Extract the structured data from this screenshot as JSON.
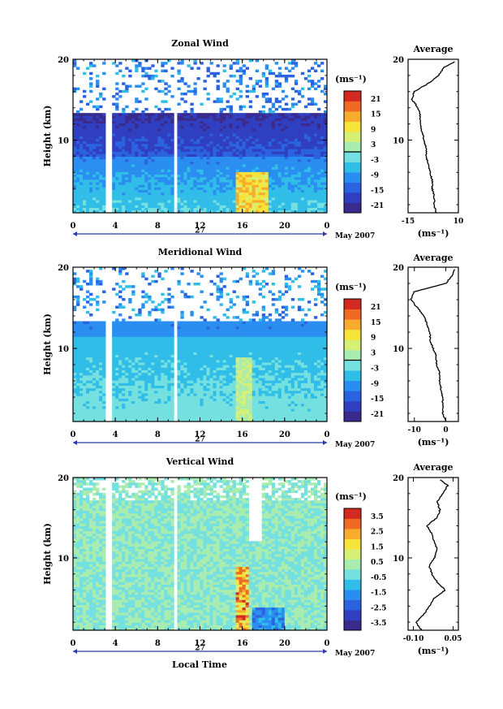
{
  "figure": {
    "xaxis_title": "Local Time",
    "date_label": "27",
    "month_label": "May 2007"
  },
  "chart_data": [
    {
      "type": "heatmap",
      "title": "Zonal Wind",
      "ylabel": "Height (km)",
      "xlabel": "Local Time",
      "x_ticks": [
        "0",
        "4",
        "8",
        "12",
        "16",
        "20",
        "0"
      ],
      "y_ticks": [
        "10",
        "20"
      ],
      "ylim": [
        1,
        20
      ],
      "xlim": [
        0,
        24
      ],
      "colorbar": {
        "unit": "(ms⁻¹)",
        "ticks": [
          "21",
          "15",
          "9",
          "3",
          "-3",
          "-9",
          "-15",
          "-21"
        ],
        "range": [
          -24,
          24
        ]
      },
      "dominant_pattern": "westerly/negative (-3 to -21 ms⁻¹) from 8 to 13 km, weak negative below, gap above ~14 km, positive patch near 16-18 LT below 5 km",
      "profile": {
        "title": "Average",
        "xlabel": "(ms⁻¹)",
        "x_ticks": [
          "-15",
          "10"
        ],
        "y_ticks": [
          "10",
          "20"
        ],
        "xlim": [
          -15,
          10
        ],
        "heights": [
          1,
          2,
          3,
          4,
          5,
          6,
          7,
          8,
          9,
          10,
          11,
          12,
          13,
          14,
          15,
          16,
          17,
          18,
          19,
          19.8
        ],
        "values": [
          -1,
          -2,
          -2,
          -3,
          -3,
          -4,
          -5,
          -6,
          -6,
          -7,
          -8,
          -9,
          -9,
          -10,
          -13,
          -12,
          -5,
          0,
          3,
          9
        ]
      }
    },
    {
      "type": "heatmap",
      "title": "Meridional Wind",
      "ylabel": "Height (km)",
      "xlabel": "Local Time",
      "x_ticks": [
        "0",
        "4",
        "8",
        "12",
        "16",
        "20",
        "0"
      ],
      "y_ticks": [
        "10",
        "20"
      ],
      "ylim": [
        1,
        20
      ],
      "xlim": [
        0,
        24
      ],
      "colorbar": {
        "unit": "(ms⁻¹)",
        "ticks": [
          "21",
          "15",
          "9",
          "3",
          "-3",
          "-9",
          "-15",
          "-21"
        ],
        "range": [
          -24,
          24
        ]
      },
      "dominant_pattern": "weak negative (0 to -6 ms⁻¹) below 12 km, stronger negative near 12-13 km, sparse above 14 km",
      "profile": {
        "title": "Average",
        "xlabel": "(ms⁻¹)",
        "x_ticks": [
          "-10",
          "0"
        ],
        "y_ticks": [
          "10",
          "20"
        ],
        "xlim": [
          -12,
          4
        ],
        "heights": [
          1,
          2,
          3,
          4,
          5,
          6,
          7,
          8,
          9,
          10,
          11,
          12,
          13,
          14,
          15,
          16,
          17,
          18,
          19,
          19.8
        ],
        "values": [
          0,
          -1,
          -1,
          -1,
          -1.5,
          -2,
          -2,
          -3,
          -3,
          -4,
          -5,
          -5,
          -6,
          -7,
          -9,
          -11,
          -10,
          0,
          2,
          3
        ]
      }
    },
    {
      "type": "heatmap",
      "title": "Vertical Wind",
      "ylabel": "Height (km)",
      "xlabel": "Local Time",
      "x_ticks": [
        "0",
        "4",
        "8",
        "12",
        "16",
        "20",
        "0"
      ],
      "y_ticks": [
        "10",
        "20"
      ],
      "ylim": [
        1,
        20
      ],
      "xlim": [
        0,
        24
      ],
      "colorbar": {
        "unit": "(ms⁻¹)",
        "ticks": [
          "3.5",
          "2.5",
          "1.5",
          "0.5",
          "-0.5",
          "-1.5",
          "-2.5",
          "-3.5"
        ],
        "range": [
          -4,
          4
        ]
      },
      "dominant_pattern": "near-zero (-0.5 to 0.5 ms⁻¹) almost everywhere, upward burst near 16 LT below 9 km",
      "profile": {
        "title": "Average",
        "xlabel": "(ms⁻¹)",
        "x_ticks": [
          "-0.10",
          "0.05"
        ],
        "y_ticks": [
          "10",
          "20"
        ],
        "xlim": [
          -0.12,
          0.07
        ],
        "heights": [
          1,
          2,
          3,
          4,
          5,
          6,
          7,
          8,
          9,
          10,
          11,
          12,
          13,
          14,
          15,
          16,
          17,
          18,
          19,
          19.8
        ],
        "values": [
          -0.07,
          -0.09,
          -0.06,
          -0.04,
          -0.02,
          0.02,
          -0.01,
          -0.03,
          -0.04,
          -0.02,
          -0.01,
          -0.02,
          -0.03,
          -0.05,
          -0.01,
          0.0,
          -0.01,
          0.01,
          0.03,
          0.0
        ]
      }
    }
  ],
  "colors": {
    "scale": [
      "#3a2a8c",
      "#2f3fc0",
      "#2b62e0",
      "#2a8ef0",
      "#30bde8",
      "#74e0e0",
      "#a9ecb0",
      "#d6f076",
      "#f6e43a",
      "#f8ac2e",
      "#f06a26",
      "#d22a20"
    ],
    "axis": "#000000",
    "date_arrow": "#2a3aa8"
  }
}
